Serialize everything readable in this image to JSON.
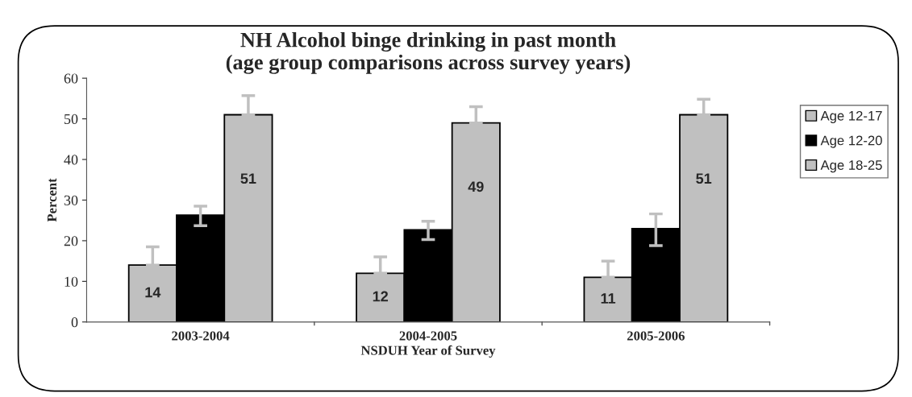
{
  "chart_data": {
    "type": "bar",
    "title": "NH Alcohol binge drinking in past month\n(age group comparisons across survey years)",
    "xlabel": "NSDUH Year of Survey",
    "ylabel": "Percent",
    "categories": [
      "2003-2004",
      "2004-2005",
      "2005-2006"
    ],
    "series": [
      {
        "name": "Age 12-17",
        "color": "#c0c0c0",
        "values": [
          14,
          12,
          11
        ],
        "errors": [
          [
            14,
            18.5
          ],
          [
            12,
            16
          ],
          [
            11,
            15
          ]
        ],
        "value_labels": [
          "14",
          "12",
          "11"
        ]
      },
      {
        "name": "Age 12-20",
        "color": "#000000",
        "values": [
          26.3,
          22.7,
          23
        ],
        "errors": [
          [
            23.7,
            28.5
          ],
          [
            20.3,
            24.8
          ],
          [
            18.8,
            26.6
          ]
        ]
      },
      {
        "name": "Age 18-25",
        "color": "#c0c0c0",
        "values": [
          51,
          49,
          51
        ],
        "errors": [
          [
            51,
            55.7
          ],
          [
            49,
            53
          ],
          [
            51,
            54.8
          ]
        ],
        "value_labels": [
          "51",
          "49",
          "51"
        ]
      }
    ],
    "ylim": [
      0,
      60
    ],
    "yticks": [
      0,
      10,
      20,
      30,
      40,
      50,
      60
    ],
    "grid": false,
    "legend": "right"
  }
}
